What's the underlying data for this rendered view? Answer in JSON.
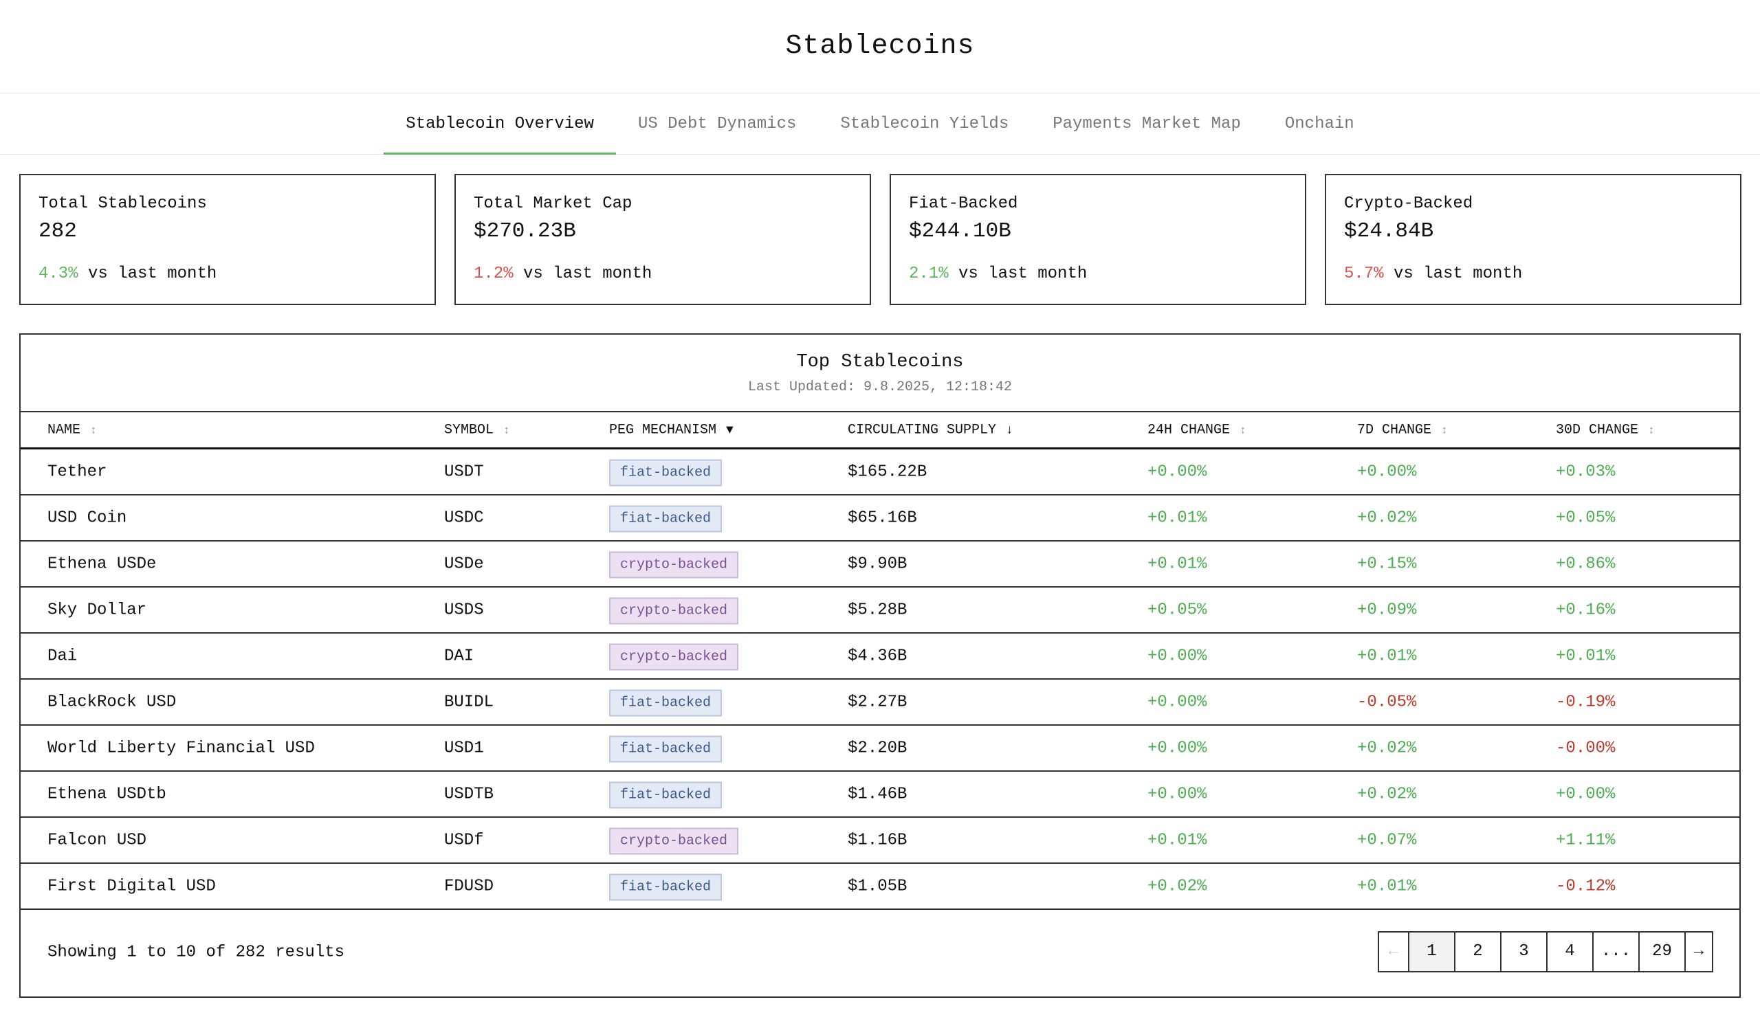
{
  "header": {
    "title": "Stablecoins"
  },
  "tabs": [
    "Stablecoin Overview",
    "US Debt Dynamics",
    "Stablecoin Yields",
    "Payments Market Map",
    "Onchain"
  ],
  "cards": [
    {
      "label": "Total Stablecoins",
      "value": "282",
      "change": "4.3%",
      "change_color": "#5cb85c",
      "note": "vs last month"
    },
    {
      "label": "Total Market Cap",
      "value": "$270.23B",
      "change": "1.2%",
      "change_color": "#d9534f",
      "note": "vs last month"
    },
    {
      "label": "Fiat-Backed",
      "value": "$244.10B",
      "change": "2.1%",
      "change_color": "#5cb85c",
      "note": "vs last month"
    },
    {
      "label": "Crypto-Backed",
      "value": "$24.84B",
      "change": "5.7%",
      "change_color": "#d9534f",
      "note": "vs last month"
    }
  ],
  "table": {
    "title": "Top Stablecoins",
    "subtitle": "Last Updated: 9.8.2025, 12:18:42",
    "columns": [
      {
        "label": "NAME",
        "sort": "↕"
      },
      {
        "label": "SYMBOL",
        "sort": "↕"
      },
      {
        "label": "PEG MECHANISM",
        "sort": "▼"
      },
      {
        "label": "CIRCULATING SUPPLY",
        "sort": "↓"
      },
      {
        "label": "24H CHANGE",
        "sort": "↕"
      },
      {
        "label": "7D CHANGE",
        "sort": "↕"
      },
      {
        "label": "30D CHANGE",
        "sort": "↕"
      }
    ],
    "rows": [
      [
        "Tether",
        "USDT",
        "fiat-backed",
        "$165.22B",
        "+0.00%",
        "+0.00%",
        "+0.03%"
      ],
      [
        "USD Coin",
        "USDC",
        "fiat-backed",
        "$65.16B",
        "+0.01%",
        "+0.02%",
        "+0.05%"
      ],
      [
        "Ethena USDe",
        "USDe",
        "crypto-backed",
        "$9.90B",
        "+0.01%",
        "+0.15%",
        "+0.86%"
      ],
      [
        "Sky Dollar",
        "USDS",
        "crypto-backed",
        "$5.28B",
        "+0.05%",
        "+0.09%",
        "+0.16%"
      ],
      [
        "Dai",
        "DAI",
        "crypto-backed",
        "$4.36B",
        "+0.00%",
        "+0.01%",
        "+0.01%"
      ],
      [
        "BlackRock USD",
        "BUIDL",
        "fiat-backed",
        "$2.27B",
        "+0.00%",
        "-0.05%",
        "-0.19%"
      ],
      [
        "World Liberty Financial USD",
        "USD1",
        "fiat-backed",
        "$2.20B",
        "+0.00%",
        "+0.02%",
        "-0.00%"
      ],
      [
        "Ethena USDtb",
        "USDTB",
        "fiat-backed",
        "$1.46B",
        "+0.00%",
        "+0.02%",
        "+0.00%"
      ],
      [
        "Falcon USD",
        "USDf",
        "crypto-backed",
        "$1.16B",
        "+0.01%",
        "+0.07%",
        "+1.11%"
      ],
      [
        "First Digital USD",
        "FDUSD",
        "fiat-backed",
        "$1.05B",
        "+0.02%",
        "+0.01%",
        "-0.12%"
      ]
    ],
    "footer": "Showing 1 to 10 of 282 results",
    "pagination": [
      "←",
      "1",
      "2",
      "3",
      "4",
      "...",
      "29",
      "→"
    ]
  }
}
